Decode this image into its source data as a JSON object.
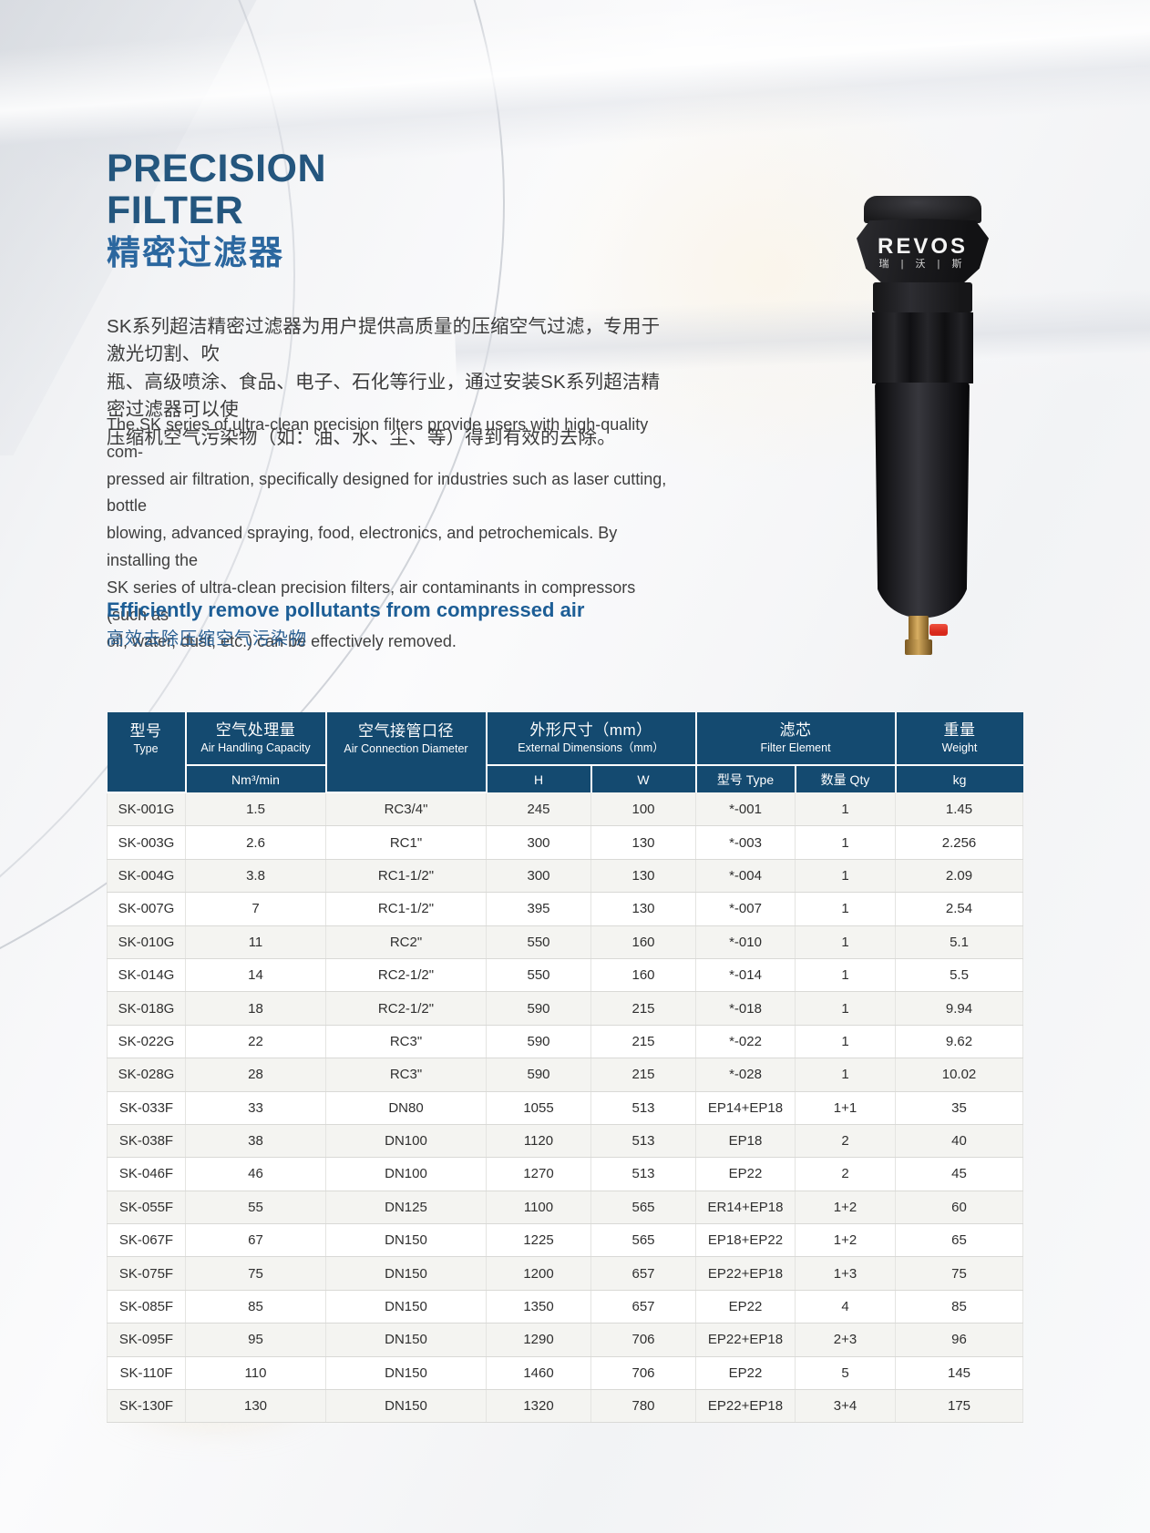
{
  "header": {
    "title_line1": "PRECISION",
    "title_line2": "FILTER",
    "title_zh": "精密过滤器"
  },
  "intro": {
    "zh_lines": [
      "SK系列超洁精密过滤器为用户提供高质量的压缩空气过滤，专用于激光切割、吹",
      "瓶、高级喷涂、食品、电子、石化等行业，通过安装SK系列超洁精密过滤器可以使",
      "压缩机空气污染物（如：油、水、尘、等）得到有效的去除。"
    ],
    "en_lines": [
      "The SK series of ultra-clean precision filters provide users with high-quality com-",
      "pressed air filtration, specifically designed for industries such as laser cutting, bottle",
      "blowing, advanced spraying, food, electronics, and petrochemicals. By installing the",
      "SK series of ultra-clean precision filters, air contaminants in compressors (such as",
      "oil, water, dust, etc.) can be effectively removed."
    ]
  },
  "tagline": {
    "en": "Efficiently remove pollutants from compressed air",
    "zh": "高效去除压缩空气污染物"
  },
  "product": {
    "brand": "REVOS",
    "brand_zh": "瑞 | 沃 | 斯"
  },
  "colors": {
    "table_header_bg": "#144a70",
    "title_blue": "#24567e",
    "title_zh_blue": "#2b679f",
    "tagline_blue": "#1d5e96",
    "row_alt": "#f4f4f1",
    "valve_red": "#d8291b",
    "brass": "#c69a55"
  },
  "table": {
    "headers": {
      "type_zh": "型号",
      "type_en": "Type",
      "capacity_zh": "空气处理量",
      "capacity_en": "Air Handling Capacity",
      "capacity_unit": "Nm³/min",
      "diameter_zh": "空气接管口径",
      "diameter_en": "Air Connection Diameter",
      "dimensions_zh": "外形尺寸（mm）",
      "dimensions_en": "External Dimensions（mm）",
      "dim_h": "H",
      "dim_w": "W",
      "element_zh": "滤芯",
      "element_en": "Filter Element",
      "element_type": "型号 Type",
      "element_qty": "数量 Qty",
      "weight_zh": "重量",
      "weight_en": "Weight",
      "weight_unit": "kg"
    },
    "rows": [
      [
        "SK-001G",
        "1.5",
        "RC3/4\"",
        "245",
        "100",
        "*-001",
        "1",
        "1.45"
      ],
      [
        "SK-003G",
        "2.6",
        "RC1\"",
        "300",
        "130",
        "*-003",
        "1",
        "2.256"
      ],
      [
        "SK-004G",
        "3.8",
        "RC1-1/2\"",
        "300",
        "130",
        "*-004",
        "1",
        "2.09"
      ],
      [
        "SK-007G",
        "7",
        "RC1-1/2\"",
        "395",
        "130",
        "*-007",
        "1",
        "2.54"
      ],
      [
        "SK-010G",
        "11",
        "RC2\"",
        "550",
        "160",
        "*-010",
        "1",
        "5.1"
      ],
      [
        "SK-014G",
        "14",
        "RC2-1/2\"",
        "550",
        "160",
        "*-014",
        "1",
        "5.5"
      ],
      [
        "SK-018G",
        "18",
        "RC2-1/2\"",
        "590",
        "215",
        "*-018",
        "1",
        "9.94"
      ],
      [
        "SK-022G",
        "22",
        "RC3\"",
        "590",
        "215",
        "*-022",
        "1",
        "9.62"
      ],
      [
        "SK-028G",
        "28",
        "RC3\"",
        "590",
        "215",
        "*-028",
        "1",
        "10.02"
      ],
      [
        "SK-033F",
        "33",
        "DN80",
        "1055",
        "513",
        "EP14+EP18",
        "1+1",
        "35"
      ],
      [
        "SK-038F",
        "38",
        "DN100",
        "1120",
        "513",
        "EP18",
        "2",
        "40"
      ],
      [
        "SK-046F",
        "46",
        "DN100",
        "1270",
        "513",
        "EP22",
        "2",
        "45"
      ],
      [
        "SK-055F",
        "55",
        "DN125",
        "1100",
        "565",
        "ER14+EP18",
        "1+2",
        "60"
      ],
      [
        "SK-067F",
        "67",
        "DN150",
        "1225",
        "565",
        "EP18+EP22",
        "1+2",
        "65"
      ],
      [
        "SK-075F",
        "75",
        "DN150",
        "1200",
        "657",
        "EP22+EP18",
        "1+3",
        "75"
      ],
      [
        "SK-085F",
        "85",
        "DN150",
        "1350",
        "657",
        "EP22",
        "4",
        "85"
      ],
      [
        "SK-095F",
        "95",
        "DN150",
        "1290",
        "706",
        "EP22+EP18",
        "2+3",
        "96"
      ],
      [
        "SK-110F",
        "110",
        "DN150",
        "1460",
        "706",
        "EP22",
        "5",
        "145"
      ],
      [
        "SK-130F",
        "130",
        "DN150",
        "1320",
        "780",
        "EP22+EP18",
        "3+4",
        "175"
      ]
    ]
  }
}
